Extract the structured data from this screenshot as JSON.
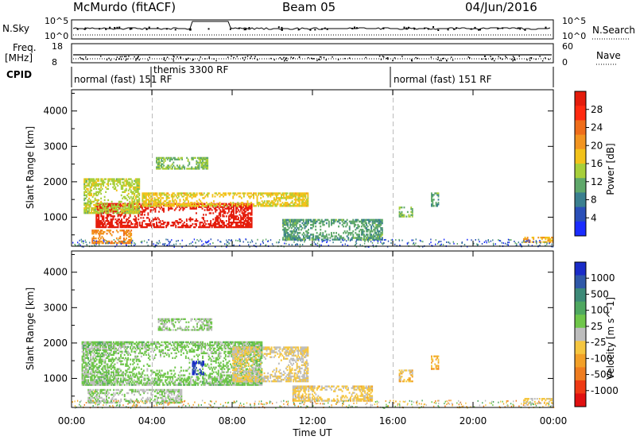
{
  "header": {
    "station": "McMurdo (fitACF)",
    "beam": "Beam 05",
    "date": "04/Jun/2016"
  },
  "panels": {
    "nsky_label": "N.Sky",
    "nsearch_label": "N.Search",
    "nsky_ticks": [
      "10^5",
      "10^0"
    ],
    "nsearch_ticks": [
      "10^5",
      "10^0"
    ],
    "freq_label": "Freq.",
    "freq_unit": "[MHz]",
    "freq_ticks": [
      "18",
      "8"
    ],
    "nave_label": "Nave",
    "nave_ticks": [
      "60",
      "0"
    ],
    "cpid_label": "CPID",
    "cpid_segments": [
      {
        "label": "normal (fast) 151 RF"
      },
      {
        "label": "themis 3300 RF"
      },
      {
        "label": "normal (fast) 151 RF"
      }
    ]
  },
  "axes": {
    "ylabel": "Slant Range [km]",
    "xlabel": "Time UT",
    "x_ticks": [
      "00:00",
      "04:00",
      "08:00",
      "12:00",
      "16:00",
      "20:00",
      "00:00"
    ],
    "y_ticks": [
      "1000",
      "2000",
      "3000",
      "4000"
    ]
  },
  "colorbars": {
    "power": {
      "label": "Power [dB]",
      "ticks": [
        "4",
        "8",
        "12",
        "16",
        "20",
        "24",
        "28"
      ],
      "colors": [
        "#1a2cff",
        "#2a4fb8",
        "#3a7f8f",
        "#5fa86a",
        "#a7cf3a",
        "#f2c21a",
        "#f29420",
        "#ef6d1a",
        "#ff2a10",
        "#e41c0c"
      ]
    },
    "velocity": {
      "label": "Velocity [m s^-1]",
      "ticks": [
        "1000",
        "500",
        "100",
        "25",
        "-25",
        "-100",
        "-500",
        "-1000"
      ],
      "colors": [
        "#1a2cc8",
        "#2f58a8",
        "#3d8a78",
        "#4fa860",
        "#6fc64a",
        "#bdbdbd",
        "#f5c640",
        "#f2a028",
        "#ef7d20",
        "#ef3a14",
        "#e01010"
      ]
    }
  },
  "chart_data": [
    {
      "type": "heatmap",
      "title": "Power [dB]",
      "xlabel": "Time UT",
      "ylabel": "Slant Range [km]",
      "x_range_hours": [
        0,
        24
      ],
      "ylim": [
        180,
        4600
      ],
      "value_range": [
        0,
        30
      ],
      "blobs": [
        {
          "t_start": 1.2,
          "t_end": 9.0,
          "r_start": 700,
          "r_end": 1400,
          "value": 29
        },
        {
          "t_start": 0.6,
          "t_end": 3.4,
          "r_start": 1100,
          "r_end": 2100,
          "value": 14
        },
        {
          "t_start": 3.5,
          "t_end": 11.8,
          "r_start": 1300,
          "r_end": 1700,
          "value": 16
        },
        {
          "t_start": 1.0,
          "t_end": 3.0,
          "r_start": 250,
          "r_end": 650,
          "value": 20
        },
        {
          "t_start": 4.2,
          "t_end": 6.8,
          "r_start": 2350,
          "r_end": 2700,
          "value": 12
        },
        {
          "t_start": 10.5,
          "t_end": 15.5,
          "r_start": 350,
          "r_end": 950,
          "value": 10
        },
        {
          "t_start": 16.3,
          "t_end": 17.0,
          "r_start": 1000,
          "r_end": 1300,
          "value": 12
        },
        {
          "t_start": 17.9,
          "t_end": 18.3,
          "r_start": 1300,
          "r_end": 1700,
          "value": 10
        },
        {
          "t_start": 22.5,
          "t_end": 24.0,
          "r_start": 280,
          "r_end": 450,
          "value": 18
        }
      ]
    },
    {
      "type": "heatmap",
      "title": "Velocity [m s^-1]",
      "xlabel": "Time UT",
      "ylabel": "Slant Range [km]",
      "x_range_hours": [
        0,
        24
      ],
      "ylim": [
        180,
        4600
      ],
      "value_range": [
        -1000,
        1000
      ],
      "blobs": [
        {
          "t_start": 0.5,
          "t_end": 9.5,
          "r_start": 800,
          "r_end": 2050,
          "value": 150
        },
        {
          "t_start": 8.0,
          "t_end": 11.8,
          "r_start": 900,
          "r_end": 1900,
          "value": -100
        },
        {
          "t_start": 4.3,
          "t_end": 7.0,
          "r_start": 2350,
          "r_end": 2700,
          "value": 100
        },
        {
          "t_start": 6.0,
          "t_end": 6.6,
          "r_start": 1100,
          "r_end": 1500,
          "value": 800
        },
        {
          "t_start": 0.8,
          "t_end": 5.5,
          "r_start": 300,
          "r_end": 700,
          "value": 60
        },
        {
          "t_start": 11.0,
          "t_end": 15.0,
          "r_start": 350,
          "r_end": 800,
          "value": -150
        },
        {
          "t_start": 16.3,
          "t_end": 17.0,
          "r_start": 900,
          "r_end": 1250,
          "value": -200
        },
        {
          "t_start": 17.9,
          "t_end": 18.3,
          "r_start": 1250,
          "r_end": 1650,
          "value": -300
        },
        {
          "t_start": 22.5,
          "t_end": 24.0,
          "r_start": 280,
          "r_end": 450,
          "value": -100
        }
      ]
    }
  ]
}
